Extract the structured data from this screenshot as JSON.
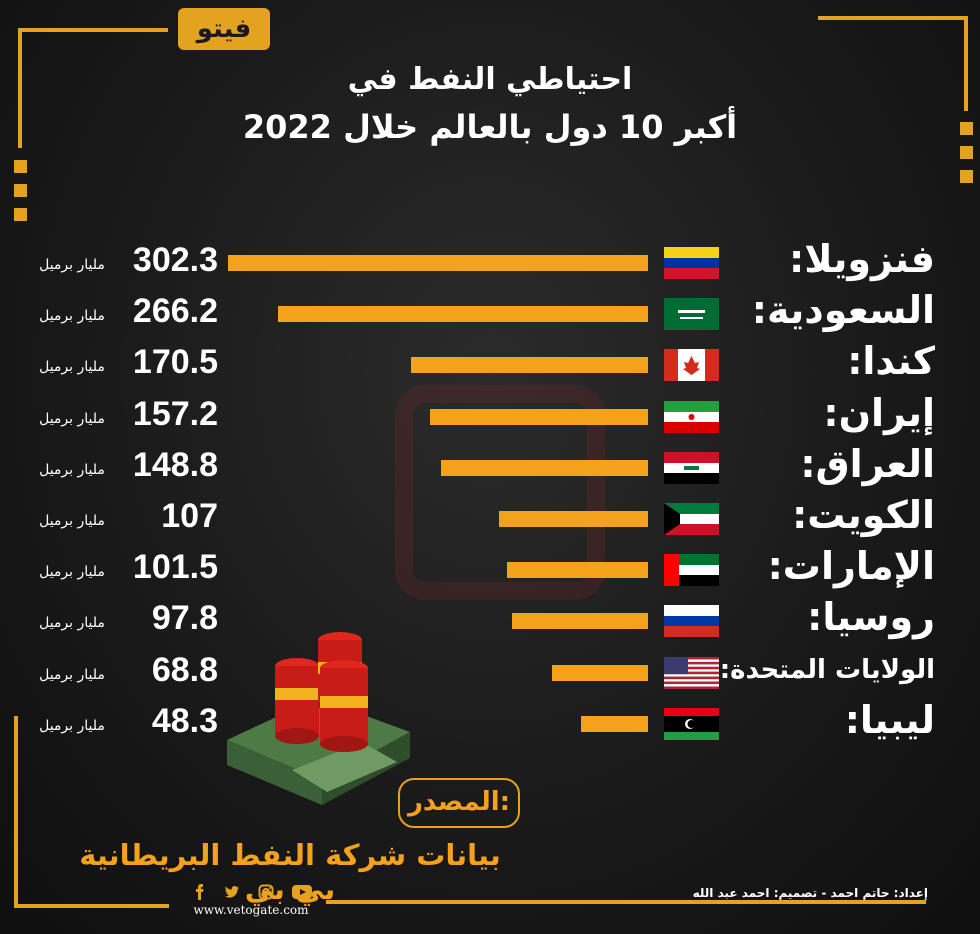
{
  "logo_text": "فيتو",
  "title_line1": "احتياطي النفط في",
  "title_line2": "أكبر 10 دول بالعالم خلال 2022",
  "chart_data": {
    "type": "bar",
    "orientation": "horizontal",
    "categories": [
      "فنزويلا:",
      "السعودية:",
      "كندا:",
      "إيران:",
      "العراق:",
      "الكويت:",
      "الإمارات:",
      "روسيا:",
      "الولايات المتحدة:",
      "ليبيا:"
    ],
    "values": [
      302.3,
      266.2,
      170.5,
      157.2,
      148.8,
      107,
      101.5,
      97.8,
      68.8,
      48.3
    ],
    "value_labels": [
      "302.3",
      "266.2",
      "170.5",
      "157.2",
      "148.8",
      "107",
      "101.5",
      "97.8",
      "68.8",
      "48.3"
    ],
    "unit_label": "مليار برميل",
    "bar_color": "#f4a11c"
  },
  "source": {
    "label": "المصدر:",
    "value": "بيانات شركة النفط البريطانية بي بي"
  },
  "credits": "إعداد: حاتم احمد - تصميم: احمد عبد الله",
  "website": "www.vetogate.com",
  "social_icons": [
    "facebook-icon",
    "twitter-icon",
    "instagram-icon",
    "youtube-icon"
  ],
  "colors": {
    "accent": "#e3a21f",
    "background": "#1a1a1a"
  }
}
